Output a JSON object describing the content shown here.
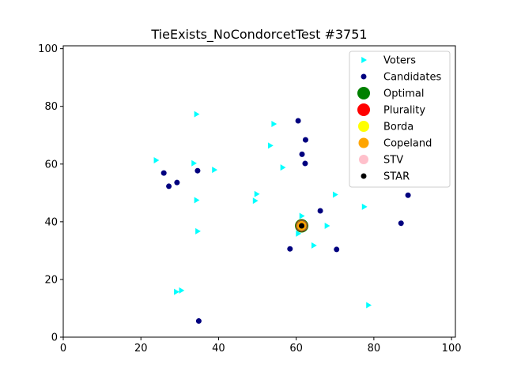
{
  "chart_data": {
    "type": "scatter",
    "title": "TieExists_NoCondorcetTest #3751",
    "xlabel": "",
    "ylabel": "",
    "xlim": [
      0,
      101
    ],
    "ylim": [
      0,
      101
    ],
    "xticks": [
      0,
      20,
      40,
      60,
      80,
      100
    ],
    "yticks": [
      0,
      20,
      40,
      60,
      80,
      100
    ],
    "grid": false,
    "legend_position": "top-right",
    "series": [
      {
        "name": "Voters",
        "marker": "triangle-right",
        "color": "#00ffff",
        "points": [
          [
            34.3,
            77.3
          ],
          [
            54.2,
            73.9
          ],
          [
            53.3,
            66.4
          ],
          [
            23.9,
            61.3
          ],
          [
            33.6,
            60.3
          ],
          [
            38.9,
            58.0
          ],
          [
            56.5,
            58.8
          ],
          [
            49.8,
            49.6
          ],
          [
            49.4,
            47.3
          ],
          [
            34.3,
            47.5
          ],
          [
            70.0,
            49.4
          ],
          [
            77.5,
            45.2
          ],
          [
            61.4,
            42.0
          ],
          [
            67.9,
            38.6
          ],
          [
            60.5,
            35.9
          ],
          [
            34.6,
            36.7
          ],
          [
            64.5,
            31.8
          ],
          [
            29.1,
            15.7
          ],
          [
            30.4,
            16.2
          ],
          [
            78.6,
            11.1
          ]
        ]
      },
      {
        "name": "Candidates",
        "marker": "circle",
        "color": "#00007f",
        "points": [
          [
            60.5,
            75.0
          ],
          [
            62.4,
            68.4
          ],
          [
            61.5,
            63.4
          ],
          [
            62.3,
            60.2
          ],
          [
            34.6,
            57.7
          ],
          [
            25.9,
            56.9
          ],
          [
            29.3,
            53.6
          ],
          [
            27.2,
            52.3
          ],
          [
            88.8,
            49.2
          ],
          [
            66.2,
            43.8
          ],
          [
            87.0,
            39.5
          ],
          [
            58.4,
            30.6
          ],
          [
            70.4,
            30.4
          ],
          [
            34.9,
            5.6
          ]
        ]
      },
      {
        "name": "Optimal",
        "marker": "circle",
        "color": "#008000",
        "points": [
          [
            61.4,
            38.6
          ]
        ]
      },
      {
        "name": "Plurality",
        "marker": "circle",
        "color": "#ff0000",
        "points": [
          [
            61.4,
            38.6
          ]
        ]
      },
      {
        "name": "Borda",
        "marker": "circle",
        "color": "#ffff00",
        "points": [
          [
            61.4,
            38.6
          ]
        ]
      },
      {
        "name": "Copeland",
        "marker": "circle",
        "color": "#ffa500",
        "points": [
          [
            61.4,
            38.6
          ]
        ]
      },
      {
        "name": "STV",
        "marker": "circle",
        "color": "#ffc0cb",
        "points": []
      },
      {
        "name": "STAR",
        "marker": "circle",
        "color": "#000000",
        "points": [
          [
            61.4,
            38.6
          ]
        ]
      }
    ]
  }
}
